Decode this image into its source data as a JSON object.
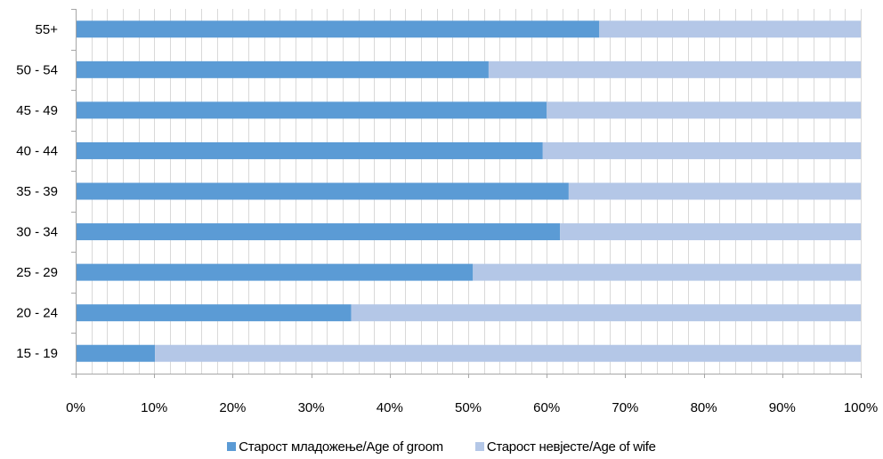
{
  "chart_data": {
    "type": "bar",
    "orientation": "horizontal",
    "stacked": "percent",
    "categories": [
      "55+",
      "50 - 54",
      "45 - 49",
      "40 - 44",
      "35 - 39",
      "30 - 34",
      "25 - 29",
      "20 - 24",
      "15 - 19"
    ],
    "series": [
      {
        "name": "Старост младожење/Age of groom",
        "color": "#5b9bd5",
        "values": [
          66.7,
          52.6,
          60.0,
          59.5,
          62.8,
          61.7,
          50.6,
          35.1,
          10.1
        ]
      },
      {
        "name": "Старост невјесте/Age of wife",
        "color": "#b4c7e7",
        "values": [
          33.3,
          47.4,
          40.0,
          40.5,
          37.2,
          38.3,
          49.4,
          64.9,
          89.9
        ]
      }
    ],
    "xlim": [
      0,
      100
    ],
    "xticks": [
      "0%",
      "10%",
      "20%",
      "30%",
      "40%",
      "50%",
      "60%",
      "70%",
      "80%",
      "90%",
      "100%"
    ],
    "grid": true,
    "legend_position": "bottom"
  }
}
